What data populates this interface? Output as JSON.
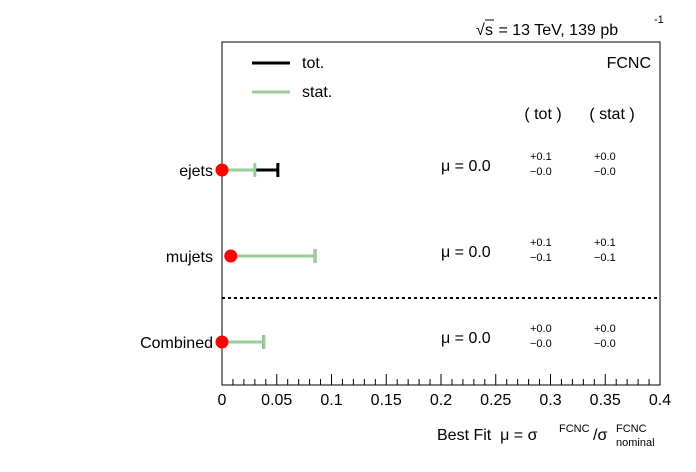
{
  "chart_data": {
    "type": "scatter",
    "subtype": "best-fit-summary",
    "top_label": {
      "sqrt": "s",
      "text": " = 13 TeV, 139 pb",
      "sup": "-1"
    },
    "corner_label": "FCNC",
    "legend": [
      {
        "name": "tot.",
        "color": "#000000"
      },
      {
        "name": "stat.",
        "color": "#99cc99"
      }
    ],
    "column_headers": [
      "( tot )",
      "( stat )"
    ],
    "xlabel": {
      "prefix": "Best Fit  μ = σ",
      "sup1": "FCNC",
      "mid": "/σ",
      "sup2": "FCNC",
      "sub2": "nominal"
    },
    "xlim": [
      0,
      0.4
    ],
    "xticks": [
      "0",
      "0.05",
      "0.1",
      "0.15",
      "0.2",
      "0.25",
      "0.3",
      "0.35",
      "0.4"
    ],
    "separator": "dotted line above Combined",
    "marker_color": "#ff0000",
    "entries": [
      {
        "label": "ejets",
        "mu": 0.0,
        "mu_text": "μ = 0.0",
        "tot_up": "+0.1",
        "tot_down": "−0.0",
        "stat_up": "+0.0",
        "stat_down": "−0.0",
        "tot_err_up": 0.051,
        "stat_err_up": 0.03
      },
      {
        "label": "mujets",
        "mu": 0.008,
        "mu_text": "μ = 0.0",
        "tot_up": "+0.1",
        "tot_down": "−0.1",
        "stat_up": "+0.1",
        "stat_down": "−0.1",
        "tot_err_up": 0.077,
        "stat_err_up": 0.077
      },
      {
        "label": "Combined",
        "mu": 0.0,
        "mu_text": "μ = 0.0",
        "tot_up": "+0.0",
        "tot_down": "−0.0",
        "stat_up": "+0.0",
        "stat_down": "−0.0",
        "tot_err_up": 0.038,
        "stat_err_up": 0.038
      }
    ]
  }
}
